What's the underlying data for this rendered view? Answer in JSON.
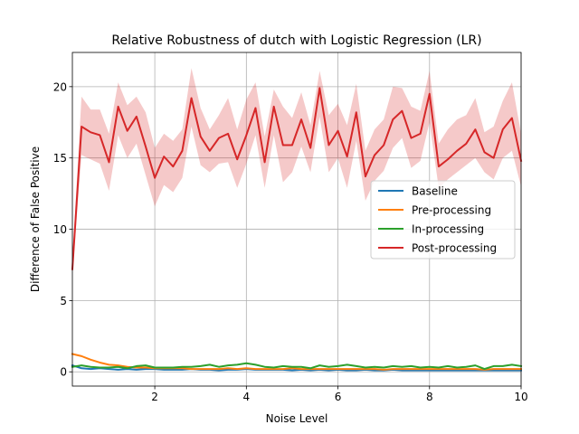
{
  "chart_data": {
    "type": "line",
    "title": "Relative Robustness of dutch with Logistic Regression (LR)",
    "xlabel": "Noise Level",
    "ylabel": "Difference of False Positive",
    "xlim": [
      0.2,
      10
    ],
    "ylim": [
      -1,
      22.4
    ],
    "grid": true,
    "legend_position": "center-right",
    "x_ticks": [
      2,
      4,
      6,
      8,
      10
    ],
    "x_tick_labels": [
      "2",
      "4",
      "6",
      "8",
      "10"
    ],
    "y_ticks": [
      0,
      5,
      10,
      15,
      20
    ],
    "y_tick_labels": [
      "0",
      "5",
      "10",
      "15",
      "20"
    ],
    "x": [
      0.2,
      0.4,
      0.6,
      0.8,
      1.0,
      1.2,
      1.4,
      1.6,
      1.8,
      2.0,
      2.2,
      2.4,
      2.6,
      2.8,
      3.0,
      3.2,
      3.4,
      3.6,
      3.8,
      4.0,
      4.2,
      4.4,
      4.6,
      4.8,
      5.0,
      5.2,
      5.4,
      5.6,
      5.8,
      6.0,
      6.2,
      6.4,
      6.6,
      6.8,
      7.0,
      7.2,
      7.4,
      7.6,
      7.8,
      8.0,
      8.2,
      8.4,
      8.6,
      8.8,
      9.0,
      9.2,
      9.4,
      9.6,
      9.8,
      10.0
    ],
    "series": [
      {
        "name": "Baseline",
        "color": "#1f77b4",
        "values": [
          0.45,
          0.25,
          0.2,
          0.25,
          0.2,
          0.15,
          0.2,
          0.15,
          0.2,
          0.2,
          0.15,
          0.15,
          0.15,
          0.2,
          0.15,
          0.15,
          0.1,
          0.15,
          0.15,
          0.2,
          0.15,
          0.15,
          0.15,
          0.15,
          0.1,
          0.15,
          0.1,
          0.15,
          0.1,
          0.15,
          0.1,
          0.1,
          0.15,
          0.1,
          0.1,
          0.15,
          0.1,
          0.1,
          0.1,
          0.1,
          0.1,
          0.1,
          0.1,
          0.1,
          0.1,
          0.1,
          0.1,
          0.1,
          0.1,
          0.1
        ]
      },
      {
        "name": "Pre-processing",
        "color": "#ff7f0e",
        "values": [
          1.25,
          1.1,
          0.85,
          0.65,
          0.5,
          0.45,
          0.35,
          0.3,
          0.3,
          0.25,
          0.25,
          0.25,
          0.25,
          0.2,
          0.2,
          0.2,
          0.2,
          0.25,
          0.2,
          0.25,
          0.2,
          0.2,
          0.2,
          0.2,
          0.25,
          0.2,
          0.2,
          0.2,
          0.2,
          0.2,
          0.2,
          0.2,
          0.2,
          0.2,
          0.15,
          0.2,
          0.2,
          0.2,
          0.2,
          0.2,
          0.2,
          0.2,
          0.2,
          0.2,
          0.2,
          0.15,
          0.2,
          0.2,
          0.2,
          0.2
        ]
      },
      {
        "name": "In-processing",
        "color": "#2ca02c",
        "values": [
          0.35,
          0.45,
          0.35,
          0.3,
          0.3,
          0.35,
          0.25,
          0.4,
          0.45,
          0.3,
          0.3,
          0.3,
          0.35,
          0.35,
          0.4,
          0.5,
          0.35,
          0.45,
          0.5,
          0.6,
          0.5,
          0.35,
          0.3,
          0.4,
          0.35,
          0.35,
          0.25,
          0.45,
          0.35,
          0.4,
          0.5,
          0.4,
          0.3,
          0.35,
          0.3,
          0.4,
          0.35,
          0.4,
          0.3,
          0.35,
          0.3,
          0.4,
          0.3,
          0.35,
          0.45,
          0.2,
          0.4,
          0.4,
          0.5,
          0.4
        ]
      },
      {
        "name": "Post-processing",
        "color": "#d62728",
        "values": [
          7.2,
          17.2,
          16.8,
          16.6,
          14.7,
          18.6,
          16.9,
          17.9,
          15.8,
          13.6,
          15.1,
          14.4,
          15.5,
          19.2,
          16.5,
          15.5,
          16.4,
          16.7,
          14.9,
          16.6,
          18.5,
          14.7,
          18.6,
          15.9,
          15.9,
          17.7,
          15.7,
          19.9,
          15.9,
          16.9,
          15.1,
          18.2,
          13.7,
          15.2,
          15.9,
          17.7,
          18.3,
          16.4,
          16.7,
          19.5,
          14.4,
          14.9,
          15.5,
          16.0,
          17.0,
          15.4,
          15.0,
          17.0,
          17.8,
          14.8
        ],
        "band_lower": [
          6.8,
          15.2,
          14.9,
          14.6,
          12.7,
          16.6,
          15.0,
          16.0,
          13.8,
          11.6,
          13.1,
          12.6,
          13.6,
          17.2,
          14.5,
          14.0,
          14.6,
          14.7,
          12.9,
          14.6,
          16.6,
          12.9,
          16.6,
          13.3,
          14.0,
          15.8,
          14.0,
          17.9,
          14.0,
          15.0,
          12.9,
          16.2,
          12.0,
          13.4,
          14.1,
          15.7,
          16.4,
          14.3,
          14.8,
          17.5,
          12.9,
          13.5,
          14.0,
          14.5,
          15.0,
          14.0,
          13.5,
          15.0,
          15.5,
          13.0
        ],
        "band_upper": [
          7.8,
          19.3,
          18.4,
          18.4,
          16.7,
          20.3,
          18.7,
          19.3,
          18.2,
          15.7,
          16.7,
          16.2,
          17.0,
          21.3,
          18.5,
          17.0,
          18.0,
          19.2,
          17.0,
          19.1,
          20.3,
          16.5,
          19.8,
          18.6,
          17.8,
          19.6,
          17.3,
          21.1,
          18.0,
          18.8,
          17.3,
          20.2,
          15.5,
          17.0,
          17.7,
          20.0,
          19.9,
          18.6,
          18.3,
          21.1,
          16.0,
          17.0,
          17.7,
          18.0,
          19.2,
          16.8,
          17.2,
          19.0,
          20.3,
          16.7
        ]
      }
    ]
  }
}
